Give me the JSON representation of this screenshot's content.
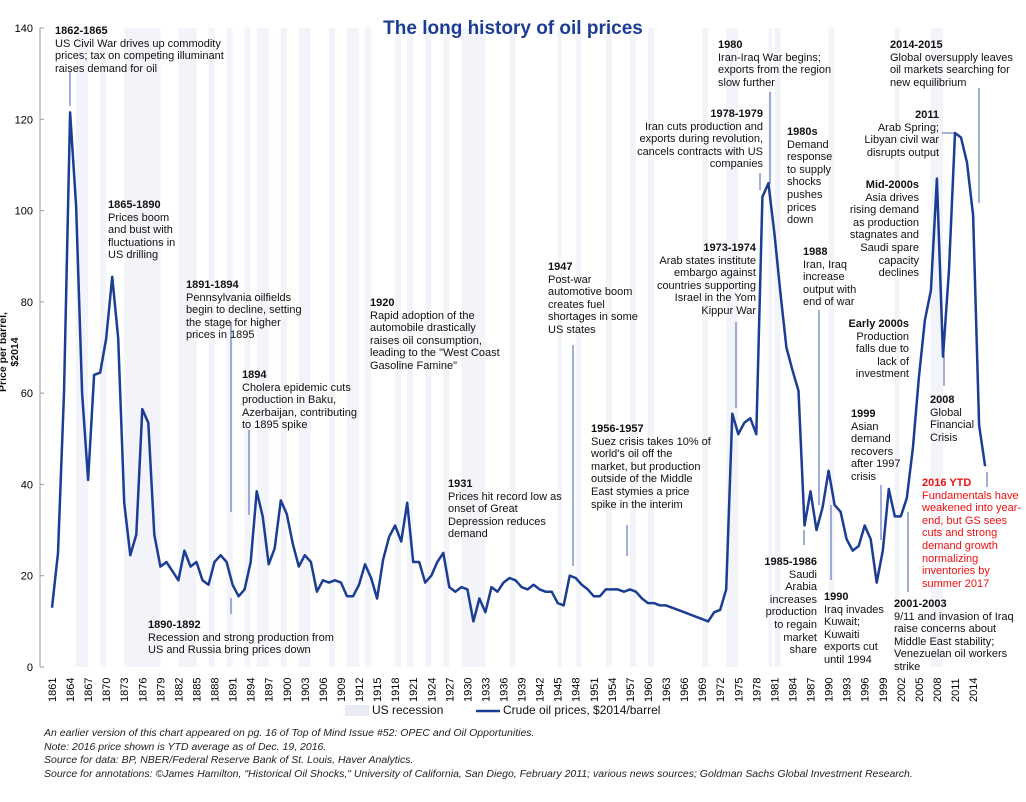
{
  "chart_data": {
    "type": "line",
    "title": "The long history of oil prices",
    "ylabel": "Price per barrel, $2014",
    "xlabel": "",
    "ylim": [
      0,
      140
    ],
    "yticks": [
      0,
      20,
      40,
      60,
      80,
      100,
      120,
      140
    ],
    "xticks": [
      1861,
      1864,
      1867,
      1870,
      1873,
      1876,
      1879,
      1882,
      1885,
      1888,
      1891,
      1894,
      1897,
      1900,
      1903,
      1906,
      1909,
      1912,
      1915,
      1918,
      1921,
      1924,
      1927,
      1930,
      1933,
      1936,
      1939,
      1942,
      1945,
      1948,
      1951,
      1954,
      1957,
      1960,
      1963,
      1966,
      1969,
      1972,
      1975,
      1978,
      1981,
      1984,
      1987,
      1990,
      1993,
      1996,
      1999,
      2002,
      2005,
      2008,
      2011,
      2014
    ],
    "grid": false,
    "legend_placement": "bottom",
    "legend": [
      "US recession",
      "Crude oil prices, $2014/barrel"
    ],
    "colors": {
      "line": "#1c3d94",
      "recession": "#eef0f7",
      "title": "#1c3d94",
      "highlight_annotation": "#ee1111"
    },
    "x": [
      1861,
      1862,
      1863,
      1864,
      1865,
      1866,
      1867,
      1868,
      1869,
      1870,
      1871,
      1872,
      1873,
      1874,
      1875,
      1876,
      1877,
      1878,
      1879,
      1880,
      1881,
      1882,
      1883,
      1884,
      1885,
      1886,
      1887,
      1888,
      1889,
      1890,
      1891,
      1892,
      1893,
      1894,
      1895,
      1896,
      1897,
      1898,
      1899,
      1900,
      1901,
      1902,
      1903,
      1904,
      1905,
      1906,
      1907,
      1908,
      1909,
      1910,
      1911,
      1912,
      1913,
      1914,
      1915,
      1916,
      1917,
      1918,
      1919,
      1920,
      1921,
      1922,
      1923,
      1924,
      1925,
      1926,
      1927,
      1928,
      1929,
      1930,
      1931,
      1932,
      1933,
      1934,
      1935,
      1936,
      1937,
      1938,
      1939,
      1940,
      1941,
      1942,
      1943,
      1944,
      1945,
      1946,
      1947,
      1948,
      1949,
      1950,
      1951,
      1952,
      1953,
      1954,
      1955,
      1956,
      1957,
      1958,
      1959,
      1960,
      1961,
      1962,
      1963,
      1964,
      1965,
      1966,
      1967,
      1968,
      1969,
      1970,
      1971,
      1972,
      1973,
      1974,
      1975,
      1976,
      1977,
      1978,
      1979,
      1980,
      1981,
      1982,
      1983,
      1984,
      1985,
      1986,
      1987,
      1988,
      1989,
      1990,
      1991,
      1992,
      1993,
      1994,
      1995,
      1996,
      1997,
      1998,
      1999,
      2000,
      2001,
      2002,
      2003,
      2004,
      2005,
      2006,
      2007,
      2008,
      2009,
      2010,
      2011,
      2012,
      2013,
      2014,
      2015,
      2016
    ],
    "series": [
      {
        "name": "Crude oil prices, $2014/barrel",
        "values": [
          13,
          25,
          60,
          121.5,
          101,
          60,
          41,
          64,
          64.5,
          72,
          85.5,
          72,
          36,
          24.5,
          29,
          56.5,
          53.5,
          29,
          22,
          23,
          21,
          19,
          25.5,
          22,
          23,
          19,
          18,
          23,
          24.5,
          23,
          18,
          15.5,
          17,
          23,
          38.5,
          33,
          22.5,
          26,
          36.5,
          33.5,
          27,
          22,
          24.5,
          23,
          16.5,
          19,
          18.5,
          19,
          18.5,
          15.5,
          15.5,
          18,
          22.5,
          19.5,
          15,
          23.5,
          28.5,
          31,
          27.5,
          36,
          23,
          23,
          18.5,
          20,
          23,
          25,
          17.5,
          16.5,
          17.5,
          17,
          10,
          15,
          12,
          17.5,
          16.5,
          18.5,
          19.5,
          19,
          17.5,
          17,
          18,
          17,
          16.5,
          16.5,
          14,
          13.5,
          20,
          19.5,
          18,
          17,
          15.5,
          15.5,
          17,
          17,
          17,
          16.5,
          17,
          16.5,
          15,
          14,
          14,
          13.5,
          13.5,
          13,
          12.5,
          12,
          11.5,
          11,
          10.5,
          10,
          12,
          12.5,
          17,
          55.5,
          51,
          53.5,
          54.5,
          51,
          103,
          106,
          95,
          82,
          70,
          65,
          60.5,
          31,
          38.5,
          30,
          35,
          43,
          35.5,
          34,
          28,
          25.5,
          26.5,
          31,
          28,
          18.5,
          25.5,
          39,
          33,
          33,
          37,
          48,
          63.5,
          76,
          82.5,
          107,
          68,
          87,
          117,
          116,
          110.5,
          99,
          53,
          44
        ]
      }
    ],
    "recessions": [
      [
        1865,
        1867
      ],
      [
        1869,
        1870
      ],
      [
        1873,
        1879
      ],
      [
        1882,
        1885
      ],
      [
        1887,
        1888
      ],
      [
        1890,
        1891
      ],
      [
        1893,
        1894
      ],
      [
        1895,
        1897
      ],
      [
        1899,
        1900
      ],
      [
        1902,
        1904
      ],
      [
        1907,
        1908
      ],
      [
        1910,
        1912
      ],
      [
        1913,
        1914
      ],
      [
        1918,
        1919
      ],
      [
        1920,
        1921
      ],
      [
        1923,
        1924
      ],
      [
        1926,
        1927
      ],
      [
        1929,
        1933
      ],
      [
        1937,
        1938
      ],
      [
        1945,
        1945.7
      ],
      [
        1948,
        1949
      ],
      [
        1953,
        1954
      ],
      [
        1957,
        1958
      ],
      [
        1960,
        1961
      ],
      [
        1969,
        1970
      ],
      [
        1973,
        1975
      ],
      [
        1980,
        1980.6
      ],
      [
        1981,
        1982
      ],
      [
        1990,
        1991
      ],
      [
        2001,
        2001.8
      ],
      [
        2007,
        2009
      ]
    ]
  },
  "annotations": [
    {
      "title": "1862-1865",
      "text": "US Civil War drives up commodity prices; tax on competing illuminant raises demand for oil"
    },
    {
      "title": "1865-1890",
      "text": "Prices boom and bust with fluctuations in US drilling"
    },
    {
      "title": "1891-1894",
      "text": "Pennsylvania oilfields begin to decline, setting the stage for higher prices in 1895"
    },
    {
      "title": "1894",
      "text": "Cholera epidemic cuts production in Baku, Azerbaijan, contributing to 1895 spike"
    },
    {
      "title": "1890-1892",
      "text": "Recession and strong production from US and Russia bring prices down"
    },
    {
      "title": "1920",
      "text": "Rapid adoption of the automobile drastically raises oil consumption, leading to the \"West Coast Gasoline Famine\""
    },
    {
      "title": "1931",
      "text": "Prices hit record low as onset of Great Depression reduces demand"
    },
    {
      "title": "1947",
      "text": "Post-war automotive boom creates fuel shortages in some US states"
    },
    {
      "title": "1956-1957",
      "text": "Suez crisis takes 10% of world's oil off the market, but production outside of the Middle East stymies a price spike in the interim"
    },
    {
      "title": "1973-1974",
      "text": "Arab states institute embargo against countries supporting Israel in the Yom Kippur War"
    },
    {
      "title": "1978-1979",
      "text": "Iran cuts production and exports during revolution, cancels contracts with US companies"
    },
    {
      "title": "1980",
      "text": "Iran-Iraq War begins; exports from the region slow further"
    },
    {
      "title": "1980s",
      "text": "Demand response to supply shocks pushes prices down"
    },
    {
      "title": "1988",
      "text": "Iran, Iraq increase output with end of war"
    },
    {
      "title": "1985-1986",
      "text": "Saudi Arabia increases production to regain market share"
    },
    {
      "title": "1990",
      "text": "Iraq invades Kuwait; Kuwaiti exports cut until 1994"
    },
    {
      "title": "1999",
      "text": "Asian demand recovers after 1997 crisis"
    },
    {
      "title": "Early 2000s",
      "text": "Production falls due to lack of investment"
    },
    {
      "title": "2001-2003",
      "text": "9/11 and invasion of Iraq raise concerns about Middle East stability; Venezuelan oil workers strike"
    },
    {
      "title": "Mid-2000s",
      "text": "Asia drives rising demand as production stagnates and Saudi spare capacity declines"
    },
    {
      "title": "2008",
      "text": "Global Financial Crisis"
    },
    {
      "title": "2011",
      "text": "Arab Spring; Libyan civil war disrupts output"
    },
    {
      "title": "2014-2015",
      "text": "Global oversupply leaves oil markets searching for new equilibrium"
    },
    {
      "title": "2016 YTD",
      "text": "Fundamentals have weakened into year-end, but GS sees cuts and strong demand growth normalizing inventories by summer 2017"
    }
  ],
  "footnotes": [
    "An earlier version of this chart appeared on pg. 16 of Top of Mind Issue #52: OPEC and Oil Opportunities.",
    "Note: 2016 price shown is YTD average as of Dec. 19, 2016.",
    "Source for data: BP, NBER/Federal Reserve Bank of St. Louis, Haver Analytics.",
    "Source for annotations: ©James Hamilton, \"Historical Oil Shocks,\" University of California, San Diego, February 2011; various news sources; Goldman Sachs Global Investment Research."
  ]
}
